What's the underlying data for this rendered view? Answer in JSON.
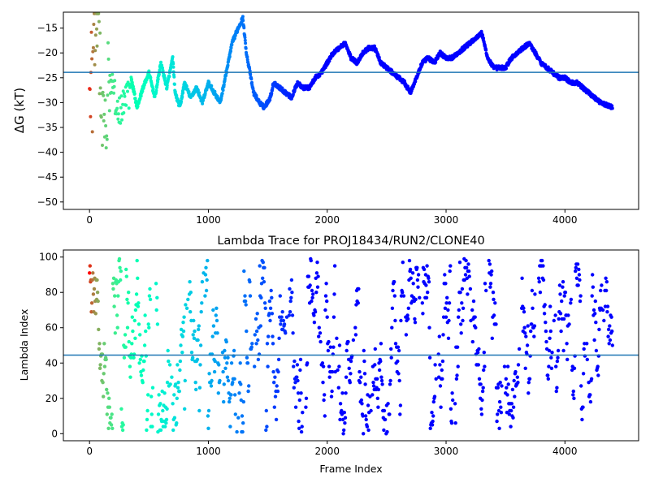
{
  "chart_data": [
    {
      "type": "scatter",
      "title": "",
      "xlabel": "",
      "ylabel": "ΔG (kT)",
      "xlim": [
        -220,
        4620
      ],
      "ylim": [
        -51.5,
        -11.8
      ],
      "xticks": [
        0,
        1000,
        2000,
        3000,
        4000
      ],
      "yticks": [
        -50,
        -45,
        -40,
        -35,
        -30,
        -25,
        -20,
        -15
      ],
      "hline": -23.9,
      "hline_color": "#1f77b4",
      "colormap": "rainbow",
      "color_by": "frame index (reversed: early frames red, late frames violet)",
      "trace_description": "dense points forming a jagged free-energy trace over frames 0-4400",
      "trace_keypoints": {
        "x": [
          0,
          15,
          30,
          45,
          60,
          80,
          95,
          110,
          125,
          140,
          160,
          200,
          250,
          300,
          350,
          400,
          450,
          500,
          550,
          600,
          650,
          700,
          720,
          760,
          800,
          850,
          900,
          950,
          1000,
          1050,
          1100,
          1150,
          1200,
          1250,
          1290,
          1320,
          1380,
          1430,
          1470,
          1520,
          1550,
          1600,
          1650,
          1700,
          1750,
          1800,
          1850,
          1900,
          1950,
          2000,
          2050,
          2100,
          2150,
          2200,
          2250,
          2300,
          2350,
          2400,
          2450,
          2500,
          2550,
          2600,
          2650,
          2700,
          2750,
          2800,
          2850,
          2900,
          2950,
          3000,
          3050,
          3100,
          3150,
          3200,
          3250,
          3300,
          3350,
          3400,
          3450,
          3500,
          3550,
          3600,
          3650,
          3700,
          3750,
          3800,
          3850,
          3900,
          3950,
          4000,
          4050,
          4100,
          4150,
          4200,
          4250,
          4300,
          4350,
          4400
        ],
        "y": [
          -19,
          -24.3,
          -15,
          -20,
          -13,
          -12,
          -27,
          -33,
          -36,
          -40,
          -28,
          -26,
          -32,
          -29,
          -25,
          -31,
          -27,
          -24,
          -29,
          -22,
          -27,
          -21,
          -28,
          -31,
          -26,
          -29,
          -27,
          -30,
          -26,
          -28,
          -30,
          -24,
          -18,
          -15,
          -13,
          -20,
          -28,
          -30,
          -31,
          -29,
          -26,
          -27,
          -28,
          -29,
          -26,
          -27,
          -27,
          -25,
          -24,
          -22,
          -20,
          -19,
          -18,
          -21,
          -22,
          -20,
          -19,
          -19,
          -22,
          -23,
          -24,
          -25,
          -26,
          -28,
          -25,
          -22,
          -21,
          -22,
          -20,
          -21,
          -21,
          -20,
          -19,
          -18,
          -17,
          -16,
          -21,
          -23,
          -23,
          -23,
          -21,
          -20,
          -19,
          -18,
          -20,
          -22,
          -23,
          -24,
          -25,
          -25,
          -26,
          -26,
          -27,
          -28,
          -29,
          -30,
          -30.5,
          -31
        ]
      },
      "early_scatter_description": "noisy scattered points from frame 0 to ~350 spreading from about -43 to -12"
    },
    {
      "type": "scatter",
      "title": "Lambda Trace for PROJ18434/RUN2/CLONE40",
      "xlabel": "Frame Index",
      "ylabel": "Lambda Index",
      "xlim": [
        -220,
        4620
      ],
      "ylim": [
        -4,
        104
      ],
      "xticks": [
        0,
        1000,
        2000,
        3000,
        4000
      ],
      "yticks": [
        0,
        20,
        40,
        60,
        80,
        100
      ],
      "hline": 44.5,
      "hline_color": "#1f77b4",
      "colormap": "rainbow",
      "color_by": "frame index (reversed: early frames red, late frames violet)",
      "point_description": "dense random-walk of lambda index 0-99 sampled every ~5 frames over frames 0-4400, forming vertical streaks"
    }
  ]
}
